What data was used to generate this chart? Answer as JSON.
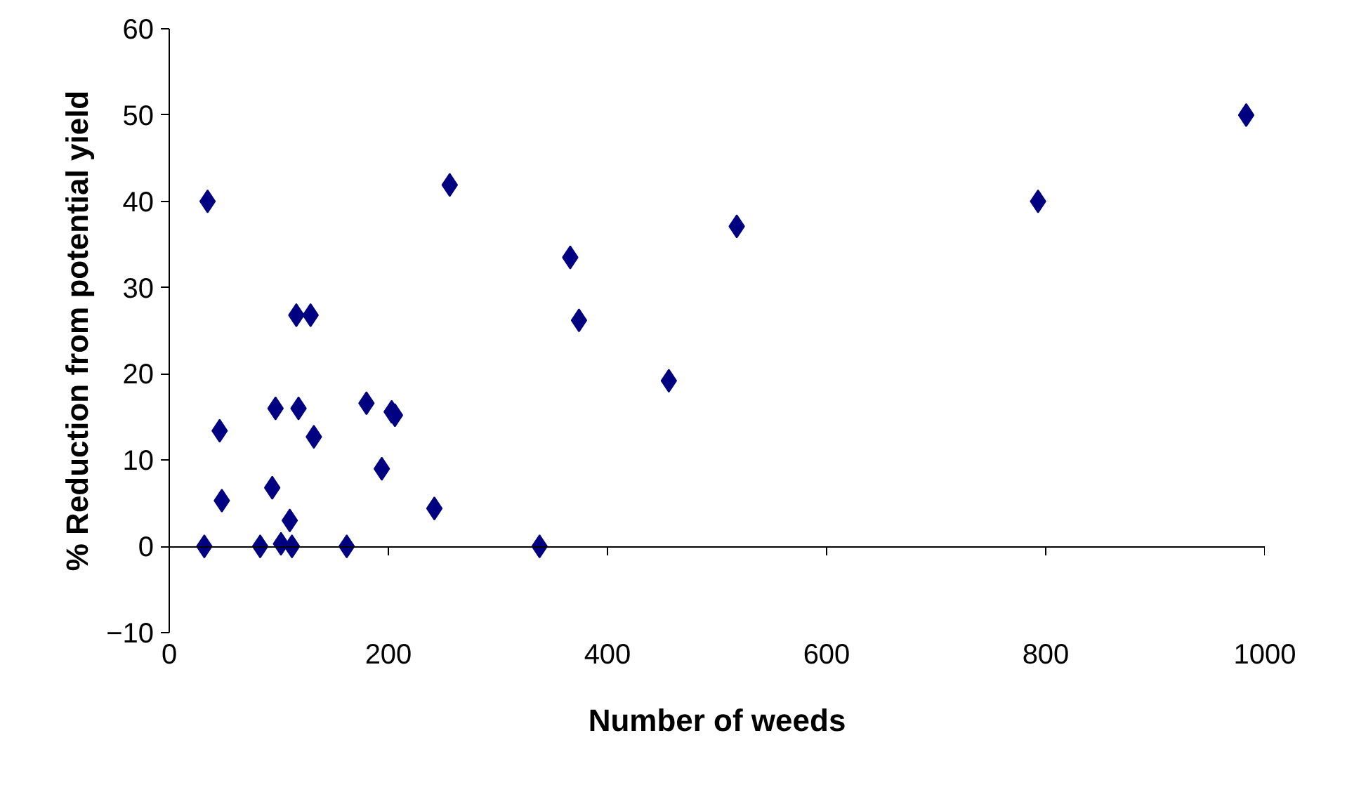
{
  "chart_data": {
    "type": "scatter",
    "xlabel": "Number of weeds",
    "ylabel": "% Reduction from potential yield",
    "x": [
      32,
      35,
      46,
      48,
      97,
      94,
      83,
      102,
      110,
      112,
      116,
      129,
      118,
      132,
      162,
      180,
      194,
      203,
      206,
      242,
      256,
      338,
      366,
      374,
      456,
      518,
      793,
      983
    ],
    "series": [
      {
        "color": "#000080",
        "values": [
          0,
          40,
          13.4,
          5.3,
          16,
          6.8,
          0,
          0.3,
          3,
          0,
          26.8,
          26.8,
          16,
          12.7,
          0,
          16.6,
          9,
          15.6,
          15.2,
          4.4,
          41.9,
          0,
          33.5,
          26.2,
          19.2,
          37.1,
          40,
          50
        ]
      }
    ],
    "xlim": [
      0,
      1000
    ],
    "xticks": [
      0,
      200,
      400,
      600,
      800,
      1000
    ],
    "ylim": [
      -10,
      60
    ],
    "yticks": [
      -10,
      0,
      10,
      20,
      30,
      40,
      50,
      60
    ],
    "marker": "diamond"
  }
}
